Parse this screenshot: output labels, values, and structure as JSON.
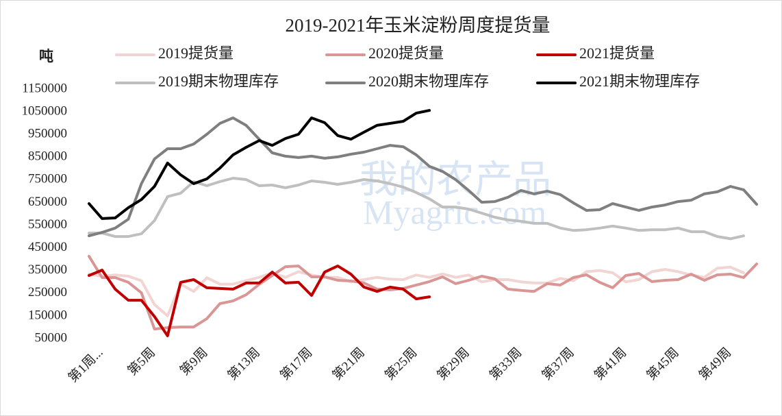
{
  "chart_data": {
    "type": "line",
    "title": "2019-2021年玉米淀粉周度提货量",
    "y_label": "吨",
    "watermark": [
      "我的农产品",
      "Myagric.com"
    ],
    "categories": [
      "第1周...",
      null,
      null,
      null,
      "第5周",
      null,
      null,
      null,
      "第9周",
      null,
      null,
      null,
      "第13周",
      null,
      null,
      null,
      "第17周",
      null,
      null,
      null,
      "第21周",
      null,
      null,
      null,
      "第25周",
      null,
      null,
      null,
      "第29周",
      null,
      null,
      null,
      "第33周",
      null,
      null,
      null,
      "第37周",
      null,
      null,
      null,
      "第41周",
      null,
      null,
      null,
      "第45周",
      null,
      null,
      null,
      "第49周",
      null,
      null,
      null
    ],
    "series": [
      {
        "name": "2019提货量",
        "color": "#f2d4d2",
        "values": [
          334000,
          325000,
          330000,
          325000,
          305000,
          200000,
          150000,
          290000,
          258000,
          318000,
          290000,
          290000,
          305000,
          320000,
          340000,
          320000,
          345000,
          330000,
          320000,
          320000,
          300000,
          310000,
          320000,
          312000,
          310000,
          330000,
          320000,
          335000,
          320000,
          330000,
          300000,
          310000,
          310000,
          300000,
          295000,
          295000,
          315000,
          305000,
          345000,
          350000,
          340000,
          300000,
          310000,
          345000,
          355000,
          345000,
          330000,
          320000,
          360000,
          365000,
          340000,
          null
        ]
      },
      {
        "name": "2020提货量",
        "color": "#d99694",
        "values": [
          413000,
          319000,
          319000,
          298000,
          252000,
          92000,
          98000,
          101000,
          101000,
          138000,
          204000,
          216000,
          243000,
          289000,
          328000,
          367000,
          370000,
          322000,
          322000,
          307000,
          304000,
          295000,
          268000,
          265000,
          271000,
          286000,
          301000,
          322000,
          292000,
          307000,
          325000,
          313000,
          268000,
          262000,
          258000,
          292000,
          286000,
          319000,
          331000,
          298000,
          274000,
          328000,
          337000,
          301000,
          307000,
          310000,
          334000,
          307000,
          331000,
          334000,
          319000,
          379000
        ]
      },
      {
        "name": "2021提货量",
        "color": "#c00000",
        "values": [
          328000,
          352000,
          268000,
          219000,
          219000,
          147000,
          62000,
          298000,
          310000,
          274000,
          271000,
          268000,
          295000,
          295000,
          343000,
          295000,
          298000,
          240000,
          343000,
          370000,
          334000,
          277000,
          258000,
          277000,
          268000,
          225000,
          234000,
          null,
          null,
          null,
          null,
          null,
          null,
          null,
          null,
          null,
          null,
          null,
          null,
          null,
          null,
          null,
          null,
          null,
          null,
          null,
          null,
          null,
          null,
          null,
          null,
          null
        ]
      },
      {
        "name": "2019期末物理库存",
        "color": "#bfbfbf",
        "values": [
          515000,
          515000,
          500000,
          500000,
          512000,
          570000,
          676000,
          691000,
          742000,
          724000,
          742000,
          757000,
          751000,
          724000,
          727000,
          715000,
          727000,
          745000,
          739000,
          730000,
          739000,
          751000,
          745000,
          733000,
          718000,
          694000,
          666000,
          630000,
          630000,
          621000,
          603000,
          585000,
          573000,
          567000,
          558000,
          558000,
          537000,
          527000,
          530000,
          537000,
          546000,
          537000,
          527000,
          530000,
          530000,
          537000,
          521000,
          521000,
          500000,
          490000,
          503000,
          null
        ]
      },
      {
        "name": "2020期末物理库存",
        "color": "#7f7f7f",
        "values": [
          503000,
          518000,
          537000,
          576000,
          733000,
          842000,
          887000,
          887000,
          908000,
          951000,
          999000,
          1023000,
          990000,
          929000,
          869000,
          854000,
          848000,
          854000,
          845000,
          851000,
          863000,
          872000,
          887000,
          902000,
          896000,
          860000,
          809000,
          787000,
          751000,
          703000,
          651000,
          654000,
          673000,
          703000,
          688000,
          700000,
          685000,
          648000,
          615000,
          618000,
          645000,
          630000,
          615000,
          630000,
          639000,
          654000,
          660000,
          688000,
          697000,
          721000,
          706000,
          642000
        ]
      },
      {
        "name": "2021期末物理库存",
        "color": "#000000",
        "values": [
          645000,
          579000,
          582000,
          627000,
          663000,
          721000,
          824000,
          772000,
          733000,
          754000,
          802000,
          860000,
          893000,
          923000,
          902000,
          932000,
          951000,
          1023000,
          1002000,
          945000,
          929000,
          960000,
          990000,
          999000,
          1008000,
          1044000,
          1056000,
          null,
          null,
          null,
          null,
          null,
          null,
          null,
          null,
          null,
          null,
          null,
          null,
          null,
          null,
          null,
          null,
          null,
          null,
          null,
          null,
          null,
          null,
          null,
          null,
          null
        ]
      }
    ],
    "ylim": [
      50000,
      1150000
    ],
    "yticks": [
      50000,
      150000,
      250000,
      350000,
      450000,
      550000,
      650000,
      750000,
      850000,
      950000,
      1050000,
      1150000
    ],
    "grid": false
  }
}
